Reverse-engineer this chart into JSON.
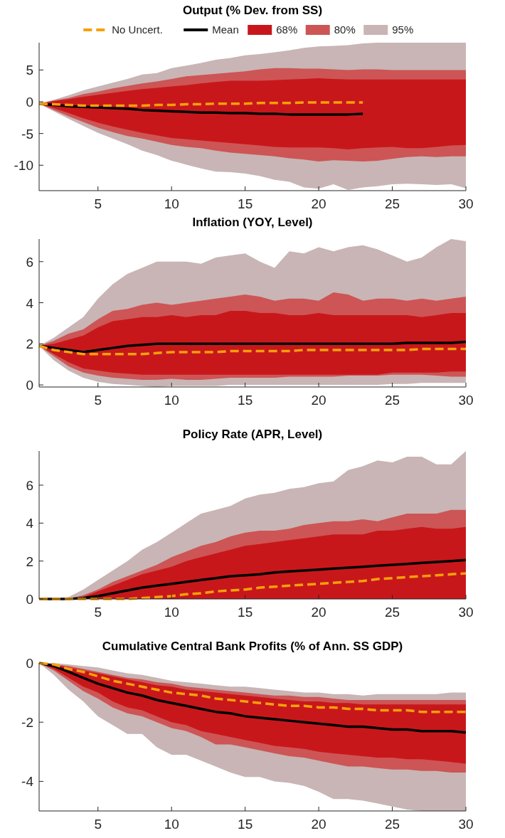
{
  "chart_data": [
    {
      "type": "line",
      "title": "Output (% Dev. from SS)",
      "x": [
        1,
        2,
        3,
        4,
        5,
        6,
        7,
        8,
        9,
        10,
        11,
        12,
        13,
        14,
        15,
        16,
        17,
        18,
        19,
        20,
        21,
        22,
        23,
        24,
        25,
        26,
        27,
        28,
        29,
        30
      ],
      "xlim": [
        1,
        30
      ],
      "xticks": [
        5,
        10,
        15,
        20,
        25,
        30
      ],
      "ylim": [
        -14,
        9.3
      ],
      "yticks": [
        -10,
        -5,
        0,
        5
      ],
      "legend": "top",
      "series": [
        {
          "name": "No Uncert.",
          "color": "#f7a00c",
          "line_style": "dashed",
          "values": [
            -0.3,
            -0.4,
            -0.5,
            -0.6,
            -0.6,
            -0.6,
            -0.6,
            -0.6,
            -0.5,
            -0.5,
            -0.4,
            -0.4,
            -0.3,
            -0.3,
            -0.3,
            -0.2,
            -0.2,
            -0.2,
            -0.1,
            -0.1,
            -0.1,
            -0.1,
            -0.1,
            null,
            null,
            null,
            null,
            null,
            null,
            null
          ]
        },
        {
          "name": "Mean",
          "color": "#000000",
          "values": [
            -0.3,
            -0.5,
            -0.7,
            -0.8,
            -0.9,
            -1.0,
            -1.1,
            -1.3,
            -1.4,
            -1.5,
            -1.6,
            -1.7,
            -1.7,
            -1.8,
            -1.8,
            -1.9,
            -1.9,
            -2.0,
            -2.0,
            -2.0,
            -2.0,
            -2.0,
            -1.9,
            null,
            null,
            null,
            null,
            null,
            null,
            null
          ]
        },
        {
          "name": "68%",
          "color": "#c8171b",
          "values": [
            null,
            null,
            null,
            null,
            null,
            null,
            null,
            null,
            null,
            null,
            null,
            null,
            null,
            null,
            null,
            null,
            null,
            null,
            null,
            null,
            null,
            null,
            null,
            null,
            null,
            null,
            null,
            null,
            null,
            null
          ],
          "lower": [
            -0.3,
            -1.0,
            -1.8,
            -2.6,
            -3.3,
            -3.9,
            -4.4,
            -4.9,
            -5.3,
            -5.7,
            -5.9,
            -6.1,
            -6.3,
            -6.5,
            -6.7,
            -6.9,
            -7.1,
            -7.2,
            -7.2,
            -7.2,
            -7.3,
            -7.5,
            -7.3,
            -7.2,
            -7.1,
            -7.3,
            -7.3,
            -7.1,
            -6.9,
            -6.8
          ],
          "upper": [
            -0.3,
            0.1,
            0.4,
            0.8,
            1.1,
            1.4,
            1.7,
            2.0,
            2.2,
            2.4,
            2.6,
            2.9,
            3.1,
            3.3,
            3.3,
            3.3,
            3.4,
            3.5,
            3.6,
            3.7,
            3.6,
            3.5,
            3.5,
            3.5,
            3.5,
            3.5,
            3.5,
            3.5,
            3.5,
            3.5
          ]
        },
        {
          "name": "80%",
          "color": "#cd5555",
          "values": [
            null,
            null,
            null,
            null,
            null,
            null,
            null,
            null,
            null,
            null,
            null,
            null,
            null,
            null,
            null,
            null,
            null,
            null,
            null,
            null,
            null,
            null,
            null,
            null,
            null,
            null,
            null,
            null,
            null,
            null
          ],
          "lower": [
            -0.3,
            -1.3,
            -2.3,
            -3.2,
            -4.1,
            -4.8,
            -5.4,
            -5.8,
            -6.3,
            -6.8,
            -7.1,
            -7.3,
            -7.7,
            -8.0,
            -8.2,
            -8.4,
            -8.6,
            -8.9,
            -9.1,
            -9.4,
            -9.2,
            -9.3,
            -9.4,
            -9.3,
            -9.0,
            -8.7,
            -8.6,
            -8.7,
            -8.6,
            -8.6
          ],
          "upper": [
            -0.3,
            0.2,
            0.6,
            1.2,
            1.6,
            2.1,
            2.5,
            2.9,
            3.2,
            3.6,
            4.0,
            4.2,
            4.4,
            4.6,
            4.8,
            5.1,
            5.3,
            5.3,
            5.2,
            5.2,
            5.1,
            5.0,
            5.1,
            5.1,
            5.0,
            5.0,
            5.0,
            5.0,
            5.0,
            5.0
          ]
        },
        {
          "name": "95%",
          "color": "#c9b5b5",
          "values": [
            null,
            null,
            null,
            null,
            null,
            null,
            null,
            null,
            null,
            null,
            null,
            null,
            null,
            null,
            null,
            null,
            null,
            null,
            null,
            null,
            null,
            null,
            null,
            null,
            null,
            null,
            null,
            null,
            null,
            null
          ],
          "lower": [
            -0.3,
            -1.5,
            -2.7,
            -3.8,
            -4.9,
            -5.8,
            -6.7,
            -7.7,
            -8.4,
            -9.3,
            -9.9,
            -10.5,
            -11.0,
            -11.1,
            -11.3,
            -11.7,
            -12.3,
            -12.6,
            -13.5,
            -13.7,
            -13.0,
            -13.9,
            -13.5,
            -13.3,
            -13.0,
            -12.9,
            -13.0,
            -13.1,
            -13.0,
            -13.6
          ],
          "upper": [
            -0.3,
            0.3,
            1.0,
            1.8,
            2.4,
            3.0,
            3.6,
            4.3,
            4.5,
            5.3,
            5.7,
            6.1,
            6.6,
            6.9,
            7.3,
            7.5,
            7.8,
            8.1,
            8.5,
            8.7,
            8.8,
            8.9,
            9.2,
            9.3,
            9.3,
            9.3,
            9.3,
            9.3,
            9.3,
            9.3
          ]
        }
      ]
    },
    {
      "type": "line",
      "title": "Inflation (YOY, Level)",
      "x": [
        1,
        2,
        3,
        4,
        5,
        6,
        7,
        8,
        9,
        10,
        11,
        12,
        13,
        14,
        15,
        16,
        17,
        18,
        19,
        20,
        21,
        22,
        23,
        24,
        25,
        26,
        27,
        28,
        29,
        30
      ],
      "xlim": [
        1,
        30
      ],
      "xticks": [
        5,
        10,
        15,
        20,
        25,
        30
      ],
      "ylim": [
        -0.1,
        7.1
      ],
      "yticks": [
        0,
        2,
        4,
        6
      ],
      "series": [
        {
          "color": "#f7a00c",
          "line_style": "dashed",
          "values": [
            1.9,
            1.7,
            1.6,
            1.5,
            1.5,
            1.5,
            1.5,
            1.5,
            1.55,
            1.6,
            1.6,
            1.6,
            1.6,
            1.65,
            1.65,
            1.65,
            1.65,
            1.65,
            1.7,
            1.7,
            1.7,
            1.7,
            1.7,
            1.7,
            1.7,
            1.7,
            1.75,
            1.75,
            1.75,
            1.75
          ]
        },
        {
          "color": "#000000",
          "values": [
            1.9,
            1.8,
            1.7,
            1.6,
            1.7,
            1.8,
            1.9,
            1.95,
            2.0,
            2.0,
            2.0,
            2.0,
            2.0,
            2.0,
            2.0,
            2.0,
            2.0,
            2.0,
            2.0,
            2.0,
            2.0,
            2.0,
            2.0,
            2.0,
            2.0,
            2.05,
            2.05,
            2.05,
            2.05,
            2.1
          ]
        },
        {
          "color": "#c8171b",
          "values": [
            null,
            null,
            null,
            null,
            null,
            null,
            null,
            null,
            null,
            null,
            null,
            null,
            null,
            null,
            null,
            null,
            null,
            null,
            null,
            null,
            null,
            null,
            null,
            null,
            null,
            null,
            null,
            null,
            null,
            null
          ],
          "lower": [
            1.9,
            1.5,
            1.1,
            0.8,
            0.7,
            0.6,
            0.55,
            0.5,
            0.5,
            0.5,
            0.5,
            0.5,
            0.5,
            0.5,
            0.5,
            0.5,
            0.5,
            0.5,
            0.5,
            0.5,
            0.5,
            0.5,
            0.5,
            0.5,
            0.6,
            0.6,
            0.6,
            0.6,
            0.65,
            0.65
          ],
          "upper": [
            1.9,
            2.0,
            2.2,
            2.4,
            2.8,
            3.1,
            3.2,
            3.3,
            3.3,
            3.4,
            3.3,
            3.4,
            3.4,
            3.6,
            3.6,
            3.5,
            3.5,
            3.4,
            3.4,
            3.5,
            3.4,
            3.4,
            3.4,
            3.4,
            3.4,
            3.4,
            3.3,
            3.4,
            3.5,
            3.5
          ]
        },
        {
          "color": "#cd5555",
          "values": [
            null,
            null,
            null,
            null,
            null,
            null,
            null,
            null,
            null,
            null,
            null,
            null,
            null,
            null,
            null,
            null,
            null,
            null,
            null,
            null,
            null,
            null,
            null,
            null,
            null,
            null,
            null,
            null,
            null,
            null
          ],
          "lower": [
            1.9,
            1.4,
            0.9,
            0.6,
            0.45,
            0.35,
            0.3,
            0.25,
            0.25,
            0.3,
            0.25,
            0.25,
            0.3,
            0.35,
            0.35,
            0.35,
            0.35,
            0.4,
            0.4,
            0.4,
            0.4,
            0.45,
            0.45,
            0.45,
            0.5,
            0.5,
            0.5,
            0.45,
            0.4,
            0.4
          ],
          "upper": [
            1.9,
            2.15,
            2.5,
            2.7,
            3.2,
            3.6,
            3.7,
            3.9,
            4.0,
            3.9,
            4.0,
            4.1,
            4.2,
            4.3,
            4.4,
            4.3,
            4.1,
            4.2,
            4.2,
            4.1,
            4.5,
            4.4,
            4.1,
            4.2,
            4.2,
            4.1,
            4.2,
            4.1,
            4.2,
            4.3
          ]
        },
        {
          "color": "#c9b5b5",
          "values": [
            null,
            null,
            null,
            null,
            null,
            null,
            null,
            null,
            null,
            null,
            null,
            null,
            null,
            null,
            null,
            null,
            null,
            null,
            null,
            null,
            null,
            null,
            null,
            null,
            null,
            null,
            null,
            null,
            null,
            null
          ],
          "lower": [
            1.9,
            1.2,
            0.7,
            0.35,
            0.15,
            0.05,
            0,
            -0.05,
            -0.1,
            -0.05,
            -0.05,
            -0.05,
            -0.05,
            0,
            0,
            0,
            0,
            0,
            0,
            0,
            0,
            0,
            0,
            0,
            0.05,
            0.05,
            0.1,
            0.1,
            0.1,
            0.1
          ],
          "upper": [
            1.9,
            2.3,
            2.8,
            3.3,
            4.2,
            4.9,
            5.4,
            5.7,
            6.0,
            6.0,
            6.0,
            5.9,
            6.2,
            6.3,
            6.4,
            6.0,
            5.7,
            6.5,
            6.4,
            6.7,
            6.5,
            6.7,
            6.8,
            6.6,
            6.3,
            6.0,
            6.2,
            6.7,
            7.1,
            7.0
          ]
        }
      ]
    },
    {
      "type": "line",
      "title": "Policy Rate (APR, Level)",
      "x": [
        1,
        2,
        3,
        4,
        5,
        6,
        7,
        8,
        9,
        10,
        11,
        12,
        13,
        14,
        15,
        16,
        17,
        18,
        19,
        20,
        21,
        22,
        23,
        24,
        25,
        26,
        27,
        28,
        29,
        30
      ],
      "xlim": [
        1,
        30
      ],
      "xticks": [
        5,
        10,
        15,
        20,
        25,
        30
      ],
      "ylim": [
        0,
        7.8
      ],
      "yticks": [
        0,
        2,
        4,
        6
      ],
      "series": [
        {
          "color": "#f7a00c",
          "line_style": "dashed",
          "values": [
            0,
            0,
            0,
            0,
            0,
            0,
            0,
            0.05,
            0.1,
            0.15,
            0.25,
            0.3,
            0.4,
            0.45,
            0.5,
            0.6,
            0.65,
            0.7,
            0.75,
            0.8,
            0.85,
            0.9,
            0.95,
            1.05,
            1.1,
            1.15,
            1.2,
            1.25,
            1.3,
            1.35
          ]
        },
        {
          "color": "#000000",
          "values": [
            0,
            0,
            0,
            0.05,
            0.15,
            0.3,
            0.45,
            0.6,
            0.7,
            0.8,
            0.9,
            1.0,
            1.1,
            1.2,
            1.25,
            1.3,
            1.4,
            1.45,
            1.5,
            1.55,
            1.6,
            1.65,
            1.7,
            1.75,
            1.8,
            1.85,
            1.9,
            1.95,
            2.0,
            2.05
          ]
        },
        {
          "color": "#c8171b",
          "values": [
            null,
            null,
            null,
            null,
            null,
            null,
            null,
            null,
            null,
            null,
            null,
            null,
            null,
            null,
            null,
            null,
            null,
            null,
            null,
            null,
            null,
            null,
            null,
            null,
            null,
            null,
            null,
            null,
            null,
            null
          ],
          "lower": [
            0,
            0,
            0,
            0,
            0,
            0,
            0,
            0,
            0,
            0,
            0,
            0,
            0,
            0,
            0,
            0,
            0,
            0,
            0,
            0,
            0,
            0,
            0,
            0,
            0,
            0,
            0,
            0,
            0,
            0
          ],
          "upper": [
            0,
            0,
            0,
            0.1,
            0.4,
            0.7,
            1.0,
            1.3,
            1.5,
            1.7,
            2.0,
            2.2,
            2.4,
            2.6,
            2.8,
            2.9,
            3.0,
            3.1,
            3.2,
            3.3,
            3.4,
            3.4,
            3.4,
            3.6,
            3.6,
            3.7,
            3.8,
            3.7,
            3.7,
            3.8
          ]
        },
        {
          "color": "#cd5555",
          "values": [
            null,
            null,
            null,
            null,
            null,
            null,
            null,
            null,
            null,
            null,
            null,
            null,
            null,
            null,
            null,
            null,
            null,
            null,
            null,
            null,
            null,
            null,
            null,
            null,
            null,
            null,
            null,
            null,
            null,
            null
          ],
          "lower": [
            0,
            0,
            0,
            0,
            0,
            0,
            0,
            0,
            0,
            0,
            0,
            0,
            0,
            0,
            0,
            0,
            0,
            0,
            0,
            0,
            0,
            0,
            0,
            0,
            0,
            0,
            0,
            0,
            0,
            0
          ],
          "upper": [
            0,
            0,
            0,
            0.2,
            0.5,
            0.9,
            1.2,
            1.5,
            1.8,
            2.2,
            2.5,
            2.8,
            3.0,
            3.3,
            3.5,
            3.6,
            3.6,
            3.7,
            3.9,
            4.0,
            4.1,
            4.1,
            4.2,
            4.1,
            4.3,
            4.5,
            4.5,
            4.5,
            4.7,
            4.7
          ]
        },
        {
          "color": "#c9b5b5",
          "values": [
            null,
            null,
            null,
            null,
            null,
            null,
            null,
            null,
            null,
            null,
            null,
            null,
            null,
            null,
            null,
            null,
            null,
            null,
            null,
            null,
            null,
            null,
            null,
            null,
            null,
            null,
            null,
            null,
            null,
            null
          ],
          "lower": [
            0,
            0,
            0,
            0,
            0,
            0,
            0,
            0,
            0,
            0,
            0,
            0,
            0,
            0,
            0,
            0,
            0,
            0,
            0,
            0,
            0,
            0,
            0,
            0,
            0,
            0,
            0,
            0,
            0,
            0
          ],
          "upper": [
            0,
            0,
            0.1,
            0.5,
            1.0,
            1.5,
            2.0,
            2.6,
            3.0,
            3.5,
            4.0,
            4.5,
            4.7,
            4.9,
            5.3,
            5.5,
            5.6,
            5.8,
            5.9,
            6.1,
            6.2,
            6.8,
            7.0,
            7.3,
            7.2,
            7.5,
            7.5,
            7.1,
            7.1,
            7.8
          ]
        }
      ]
    },
    {
      "type": "line",
      "title": "Cumulative Central Bank Profits (% of Ann. SS GDP)",
      "x": [
        1,
        2,
        3,
        4,
        5,
        6,
        7,
        8,
        9,
        10,
        11,
        12,
        13,
        14,
        15,
        16,
        17,
        18,
        19,
        20,
        21,
        22,
        23,
        24,
        25,
        26,
        27,
        28,
        29,
        30
      ],
      "xlim": [
        1,
        30
      ],
      "xticks": [
        5,
        10,
        15,
        20,
        25,
        30
      ],
      "ylim": [
        -5,
        0
      ],
      "yticks": [
        -4,
        -2,
        0
      ],
      "series": [
        {
          "color": "#f7a00c",
          "line_style": "dashed",
          "values": [
            0,
            -0.05,
            -0.2,
            -0.3,
            -0.45,
            -0.6,
            -0.7,
            -0.8,
            -0.9,
            -1.0,
            -1.05,
            -1.1,
            -1.2,
            -1.25,
            -1.3,
            -1.35,
            -1.4,
            -1.45,
            -1.45,
            -1.5,
            -1.5,
            -1.55,
            -1.55,
            -1.6,
            -1.6,
            -1.6,
            -1.65,
            -1.65,
            -1.65,
            -1.65
          ]
        },
        {
          "color": "#000000",
          "values": [
            0,
            -0.1,
            -0.3,
            -0.5,
            -0.7,
            -0.85,
            -1.0,
            -1.1,
            -1.25,
            -1.35,
            -1.45,
            -1.55,
            -1.65,
            -1.7,
            -1.8,
            -1.85,
            -1.9,
            -1.95,
            -2.0,
            -2.05,
            -2.1,
            -2.15,
            -2.15,
            -2.2,
            -2.25,
            -2.25,
            -2.3,
            -2.3,
            -2.3,
            -2.35
          ]
        },
        {
          "color": "#c8171b",
          "values": [
            null,
            null,
            null,
            null,
            null,
            null,
            null,
            null,
            null,
            null,
            null,
            null,
            null,
            null,
            null,
            null,
            null,
            null,
            null,
            null,
            null,
            null,
            null,
            null,
            null,
            null,
            null,
            null,
            null,
            null
          ],
          "lower": [
            0,
            -0.2,
            -0.5,
            -0.8,
            -1.0,
            -1.3,
            -1.5,
            -1.6,
            -1.8,
            -2.0,
            -2.1,
            -2.3,
            -2.4,
            -2.5,
            -2.6,
            -2.7,
            -2.8,
            -2.85,
            -2.9,
            -3.0,
            -3.05,
            -3.1,
            -3.15,
            -3.2,
            -3.2,
            -3.25,
            -3.25,
            -3.3,
            -3.35,
            -3.4
          ],
          "upper": [
            0,
            -0.05,
            -0.15,
            -0.25,
            -0.35,
            -0.45,
            -0.55,
            -0.65,
            -0.75,
            -0.8,
            -0.9,
            -0.95,
            -1.0,
            -1.05,
            -1.1,
            -1.15,
            -1.2,
            -1.25,
            -1.3,
            -1.3,
            -1.35,
            -1.35,
            -1.4,
            -1.4,
            -1.4,
            -1.4,
            -1.4,
            -1.4,
            -1.4,
            -1.4
          ]
        },
        {
          "color": "#cd5555",
          "values": [
            null,
            null,
            null,
            null,
            null,
            null,
            null,
            null,
            null,
            null,
            null,
            null,
            null,
            null,
            null,
            null,
            null,
            null,
            null,
            null,
            null,
            null,
            null,
            null,
            null,
            null,
            null,
            null,
            null,
            null
          ],
          "lower": [
            0,
            -0.25,
            -0.6,
            -0.95,
            -1.2,
            -1.5,
            -1.7,
            -1.8,
            -2.0,
            -2.2,
            -2.3,
            -2.5,
            -2.75,
            -2.75,
            -2.85,
            -2.95,
            -3.05,
            -3.15,
            -3.2,
            -3.3,
            -3.4,
            -3.5,
            -3.5,
            -3.55,
            -3.6,
            -3.6,
            -3.65,
            -3.65,
            -3.7,
            -3.7
          ],
          "upper": [
            0,
            -0.05,
            -0.1,
            -0.2,
            -0.3,
            -0.4,
            -0.5,
            -0.55,
            -0.65,
            -0.7,
            -0.8,
            -0.85,
            -0.9,
            -0.95,
            -1.0,
            -1.05,
            -1.1,
            -1.1,
            -1.15,
            -1.15,
            -1.2,
            -1.25,
            -1.25,
            -1.25,
            -1.25,
            -1.25,
            -1.25,
            -1.25,
            -1.25,
            -1.25
          ]
        },
        {
          "color": "#c9b5b5",
          "values": [
            null,
            null,
            null,
            null,
            null,
            null,
            null,
            null,
            null,
            null,
            null,
            null,
            null,
            null,
            null,
            null,
            null,
            null,
            null,
            null,
            null,
            null,
            null,
            null,
            null,
            null,
            null,
            null,
            null,
            null
          ],
          "lower": [
            0,
            -0.4,
            -0.9,
            -1.3,
            -1.8,
            -2.1,
            -2.4,
            -2.4,
            -2.85,
            -3.1,
            -3.1,
            -3.3,
            -3.5,
            -3.7,
            -3.85,
            -3.85,
            -4.0,
            -4.05,
            -4.15,
            -4.35,
            -4.6,
            -4.6,
            -4.65,
            -4.75,
            -4.85,
            -4.95,
            -5.0,
            -5.0,
            -5.0,
            -5.0
          ],
          "upper": [
            0,
            0,
            -0.05,
            -0.1,
            -0.15,
            -0.25,
            -0.35,
            -0.4,
            -0.5,
            -0.6,
            -0.65,
            -0.7,
            -0.75,
            -0.8,
            -0.8,
            -0.85,
            -0.9,
            -0.95,
            -1.0,
            -1.0,
            -1.05,
            -1.05,
            -1.1,
            -1.05,
            -1.05,
            -1.05,
            -1.05,
            -1.05,
            -1.0,
            -1.0
          ]
        }
      ]
    }
  ]
}
